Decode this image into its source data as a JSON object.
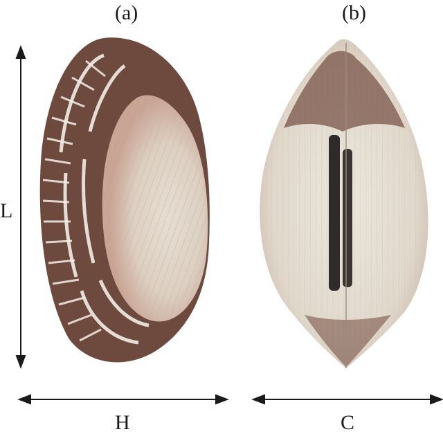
{
  "panels": {
    "a": {
      "label": "(a)"
    },
    "b": {
      "label": "(b)"
    }
  },
  "dimensions": {
    "length": "L",
    "height": "H",
    "convexity": "C"
  },
  "colors": {
    "shell_light": "#e9e4da",
    "shell_rib": "#cdbfae",
    "shell_brown": "#6e4a3e",
    "shell_dark": "#4a3631",
    "hinge_dark": "#2f2b2a",
    "arrow": "#1a1a1a"
  }
}
